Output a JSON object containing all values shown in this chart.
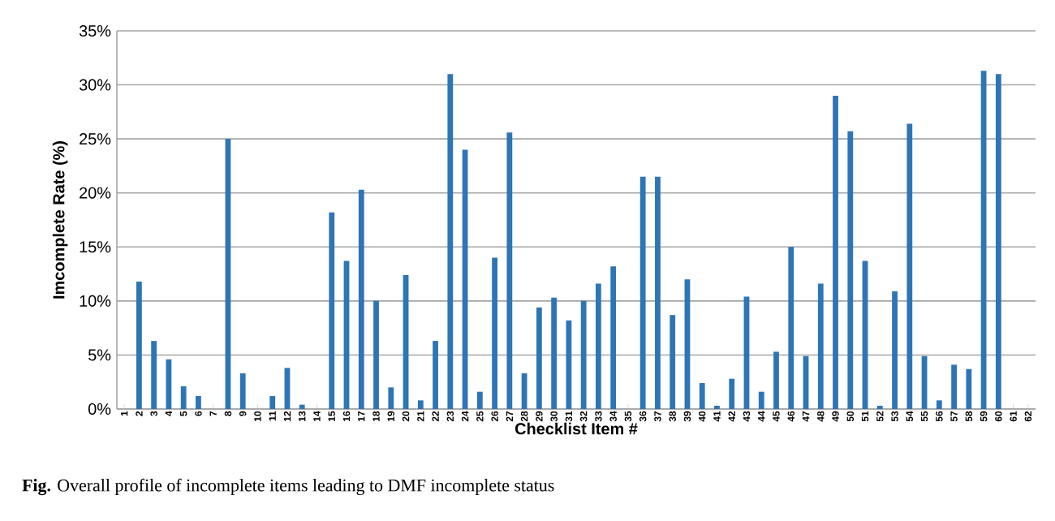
{
  "chart_data": {
    "type": "bar",
    "xlabel": "Checklist Item #",
    "ylabel": "Imcomplete Rate (%)",
    "categories": [
      "1",
      "2",
      "3",
      "4",
      "5",
      "6",
      "7",
      "8",
      "9",
      "10",
      "11",
      "12",
      "13",
      "14",
      "15",
      "16",
      "17",
      "18",
      "19",
      "20",
      "21",
      "22",
      "23",
      "24",
      "25",
      "26",
      "27",
      "28",
      "29",
      "30",
      "31",
      "32",
      "33",
      "34",
      "35",
      "36",
      "37",
      "38",
      "39",
      "40",
      "41",
      "42",
      "43",
      "44",
      "45",
      "46",
      "47",
      "48",
      "49",
      "50",
      "51",
      "52",
      "53",
      "54",
      "55",
      "56",
      "57",
      "58",
      "59",
      "60",
      "61",
      "62"
    ],
    "values": [
      0,
      11.8,
      6.3,
      4.6,
      2.1,
      1.2,
      0,
      25,
      3.3,
      0,
      1.2,
      3.8,
      0.4,
      0,
      18.2,
      13.7,
      20.3,
      10,
      2,
      12.4,
      0.8,
      6.3,
      31,
      24,
      1.6,
      14,
      25.6,
      3.3,
      9.4,
      10.3,
      8.2,
      10,
      11.6,
      13.2,
      0,
      21.5,
      21.5,
      8.7,
      12,
      2.4,
      0.3,
      2.8,
      10.4,
      1.6,
      5.3,
      15,
      4.9,
      11.6,
      29,
      25.7,
      13.7,
      0.3,
      10.9,
      26.4,
      4.9,
      0.8,
      4.1,
      3.7,
      31.3,
      31,
      0,
      0
    ],
    "color": "#2e75b6",
    "ylim": [
      0,
      35
    ],
    "yticks": [
      {
        "value": 0,
        "label": "0%"
      },
      {
        "value": 5,
        "label": "5%"
      },
      {
        "value": 10,
        "label": "10%"
      },
      {
        "value": 15,
        "label": "15%"
      },
      {
        "value": 20,
        "label": "20%"
      },
      {
        "value": 25,
        "label": "25%"
      },
      {
        "value": 30,
        "label": "30%"
      },
      {
        "value": 35,
        "label": "35%"
      }
    ],
    "grid": "y",
    "annotations": [
      "**Fig.**     Overall profile of incomplete items leading to DMF incomplete status"
    ]
  }
}
